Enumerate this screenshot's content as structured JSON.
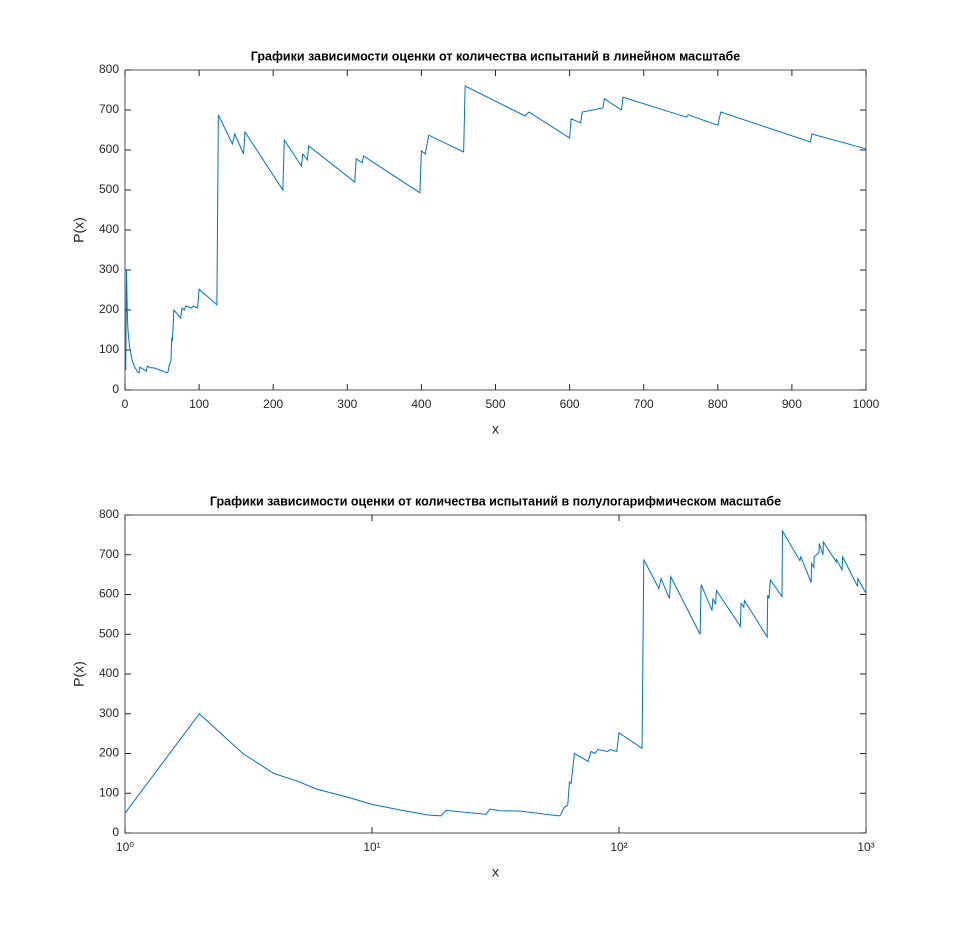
{
  "chart_data": [
    {
      "type": "line",
      "title": "Графики зависимости оценки от количества испытаний в линейном масштабе",
      "xlabel": "x",
      "ylabel": "P(x)",
      "xscale": "linear",
      "color": "#0072bd",
      "x": [
        1,
        2,
        3,
        4,
        5,
        6,
        8,
        10,
        13,
        17,
        19,
        20,
        29,
        30,
        33,
        40,
        57,
        58,
        60,
        62,
        63,
        64,
        66,
        75,
        77,
        80,
        82,
        90,
        92,
        98,
        100,
        124,
        126,
        145,
        148,
        160,
        162,
        213,
        215,
        238,
        240,
        246,
        248,
        310,
        312,
        320,
        322,
        398,
        400,
        405,
        410,
        457,
        459,
        540,
        545,
        600,
        602,
        615,
        617,
        645,
        647,
        670,
        672,
        758,
        760,
        800,
        804,
        925,
        927,
        1000
      ],
      "values": [
        50,
        300,
        200,
        150,
        130,
        110,
        90,
        72,
        58,
        45,
        43,
        57,
        47,
        60,
        56,
        55,
        43,
        45,
        65,
        70,
        128,
        125,
        200,
        180,
        205,
        200,
        210,
        205,
        210,
        205,
        252,
        213,
        688,
        615,
        640,
        590,
        645,
        500,
        625,
        560,
        590,
        575,
        610,
        520,
        578,
        568,
        585,
        493,
        598,
        590,
        637,
        595,
        760,
        685,
        695,
        630,
        678,
        668,
        695,
        705,
        728,
        700,
        732,
        682,
        688,
        662,
        695,
        620,
        640,
        603
      ],
      "xlim": [
        0,
        1000
      ],
      "xticks": [
        0,
        100,
        200,
        300,
        400,
        500,
        600,
        700,
        800,
        900,
        1000
      ],
      "ylim": [
        0,
        800
      ],
      "yticks": [
        0,
        100,
        200,
        300,
        400,
        500,
        600,
        700,
        800
      ]
    },
    {
      "type": "line",
      "title": "Графики зависимости оценки от количества испытаний в полулогарифмическом масштабе",
      "xlabel": "x",
      "ylabel": "P(x)",
      "xscale": "log",
      "color": "#0072bd",
      "x": [
        1,
        2,
        3,
        4,
        5,
        6,
        8,
        10,
        13,
        17,
        19,
        20,
        29,
        30,
        33,
        40,
        57,
        58,
        60,
        62,
        63,
        64,
        66,
        75,
        77,
        80,
        82,
        90,
        92,
        98,
        100,
        124,
        126,
        145,
        148,
        160,
        162,
        213,
        215,
        238,
        240,
        246,
        248,
        310,
        312,
        320,
        322,
        398,
        400,
        405,
        410,
        457,
        459,
        540,
        545,
        600,
        602,
        615,
        617,
        645,
        647,
        670,
        672,
        758,
        760,
        800,
        804,
        925,
        927,
        1000
      ],
      "values": [
        50,
        300,
        200,
        150,
        130,
        110,
        90,
        72,
        58,
        45,
        43,
        57,
        47,
        60,
        56,
        55,
        43,
        45,
        65,
        70,
        128,
        125,
        200,
        180,
        205,
        200,
        210,
        205,
        210,
        205,
        252,
        213,
        688,
        615,
        640,
        590,
        645,
        500,
        625,
        560,
        590,
        575,
        610,
        520,
        578,
        568,
        585,
        493,
        598,
        590,
        637,
        595,
        760,
        685,
        695,
        630,
        678,
        668,
        695,
        705,
        728,
        700,
        732,
        682,
        688,
        662,
        695,
        620,
        640,
        603
      ],
      "xlim": [
        1,
        1000
      ],
      "xticks": [
        {
          "value": 1,
          "label": "10⁰"
        },
        {
          "value": 10,
          "label": "10¹"
        },
        {
          "value": 100,
          "label": "10²"
        },
        {
          "value": 1000,
          "label": "10³"
        }
      ],
      "ylim": [
        0,
        800
      ],
      "yticks": [
        0,
        100,
        200,
        300,
        400,
        500,
        600,
        700,
        800
      ]
    }
  ]
}
